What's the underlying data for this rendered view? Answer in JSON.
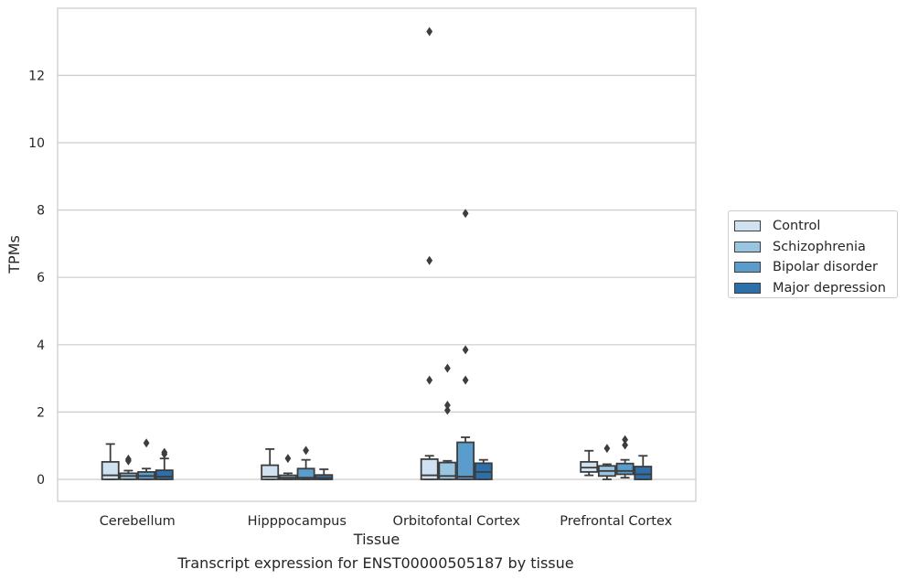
{
  "chart_data": {
    "type": "box",
    "title": "",
    "caption": "Transcript expression for ENST00000505187 by tissue",
    "xlabel": "Tissue",
    "ylabel": "TPMs",
    "ylim": [
      -0.65,
      14.1
    ],
    "yticks": [
      0,
      2,
      4,
      6,
      8,
      10,
      12
    ],
    "grid": true,
    "legend_placement": "right",
    "categories": [
      "Cerebellum",
      "Hipppocampus",
      "Orbitofontal Cortex",
      "Prefrontal Cortex"
    ],
    "series": [
      {
        "name": "Control",
        "color": "#d0e1f2",
        "boxes": [
          {
            "whislo": 0,
            "q1": 0,
            "med": 0.12,
            "q3": 0.52,
            "whishi": 1.05,
            "fliers": []
          },
          {
            "whislo": 0,
            "q1": 0,
            "med": 0.08,
            "q3": 0.42,
            "whishi": 0.9,
            "fliers": []
          },
          {
            "whislo": 0,
            "q1": 0,
            "med": 0.12,
            "q3": 0.6,
            "whishi": 0.7,
            "fliers": [
              2.95,
              6.5,
              13.3
            ]
          },
          {
            "whislo": 0.12,
            "q1": 0.22,
            "med": 0.35,
            "q3": 0.52,
            "whishi": 0.85,
            "fliers": []
          }
        ]
      },
      {
        "name": "Schizophrenia",
        "color": "#9ac5e1",
        "boxes": [
          {
            "whislo": 0,
            "q1": 0,
            "med": 0.1,
            "q3": 0.18,
            "whishi": 0.26,
            "fliers": [
              0.55,
              0.6
            ]
          },
          {
            "whislo": 0,
            "q1": 0,
            "med": 0.05,
            "q3": 0.12,
            "whishi": 0.18,
            "fliers": [
              0.62
            ]
          },
          {
            "whislo": 0,
            "q1": 0,
            "med": 0.1,
            "q3": 0.5,
            "whishi": 0.55,
            "fliers": [
              2.05,
              2.2,
              3.3
            ]
          },
          {
            "whislo": 0,
            "q1": 0.1,
            "med": 0.25,
            "q3": 0.4,
            "whishi": 0.45,
            "fliers": [
              0.92
            ]
          }
        ]
      },
      {
        "name": "Bipolar disorder",
        "color": "#5a9ccc",
        "boxes": [
          {
            "whislo": 0,
            "q1": 0,
            "med": 0.1,
            "q3": 0.22,
            "whishi": 0.32,
            "fliers": [
              1.08
            ]
          },
          {
            "whislo": 0,
            "q1": 0,
            "med": 0.05,
            "q3": 0.32,
            "whishi": 0.58,
            "fliers": [
              0.86
            ]
          },
          {
            "whislo": 0,
            "q1": 0,
            "med": 0.08,
            "q3": 1.1,
            "whishi": 1.25,
            "fliers": [
              2.95,
              3.85,
              7.9
            ]
          },
          {
            "whislo": 0.05,
            "q1": 0.15,
            "med": 0.25,
            "q3": 0.47,
            "whishi": 0.58,
            "fliers": [
              1.02,
              1.18
            ]
          }
        ]
      },
      {
        "name": "Major depression",
        "color": "#2c6fab",
        "boxes": [
          {
            "whislo": 0,
            "q1": 0,
            "med": 0.08,
            "q3": 0.27,
            "whishi": 0.62,
            "fliers": [
              0.75,
              0.8
            ]
          },
          {
            "whislo": 0,
            "q1": 0,
            "med": 0.04,
            "q3": 0.13,
            "whishi": 0.3,
            "fliers": []
          },
          {
            "whislo": 0,
            "q1": 0,
            "med": 0.22,
            "q3": 0.48,
            "whishi": 0.58,
            "fliers": []
          },
          {
            "whislo": 0,
            "q1": 0,
            "med": 0.15,
            "q3": 0.38,
            "whishi": 0.7,
            "fliers": []
          }
        ]
      }
    ]
  }
}
